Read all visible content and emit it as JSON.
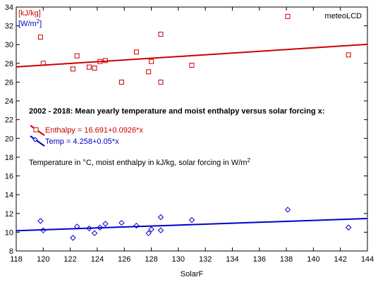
{
  "chart_data": {
    "type": "scatter",
    "title": "2002 - 2018: Mean yearly temperature and moist enthalpy versus solar forcing x:",
    "xlabel": "SolarF",
    "unit_enthalpy": "[kJ/kg]",
    "unit_solar": "[W/m",
    "unit_solar_sup": "2",
    "unit_solar_close": "]",
    "watermark": "meteoLCD",
    "note": "Temperature in °C, moist enthalpy in kJ/kg, solar forcing in W/m",
    "note_sup": "2",
    "xlim": [
      118,
      144
    ],
    "ylim": [
      8,
      34
    ],
    "xticks": [
      118,
      120,
      122,
      124,
      126,
      128,
      130,
      132,
      134,
      136,
      138,
      140,
      142,
      144
    ],
    "yticks": [
      8,
      10,
      12,
      14,
      16,
      18,
      20,
      22,
      24,
      26,
      28,
      30,
      32,
      34
    ],
    "grid": false,
    "colors": {
      "enthalpy": "#cc0000",
      "temp": "#0000cc",
      "text": "#000000"
    },
    "series": [
      {
        "name": "Enthalpy = 16.691+0.0926*x",
        "marker": "square",
        "fit": {
          "intercept": 16.691,
          "slope": 0.0926
        },
        "points": [
          [
            119.8,
            30.8
          ],
          [
            120.0,
            28.0
          ],
          [
            122.2,
            27.4
          ],
          [
            122.5,
            28.8
          ],
          [
            123.4,
            27.6
          ],
          [
            123.8,
            27.5
          ],
          [
            124.2,
            28.2
          ],
          [
            124.6,
            28.3
          ],
          [
            125.8,
            26.0
          ],
          [
            126.9,
            29.2
          ],
          [
            127.8,
            27.1
          ],
          [
            128.0,
            28.2
          ],
          [
            128.7,
            31.1
          ],
          [
            128.7,
            26.0
          ],
          [
            131.0,
            27.8
          ],
          [
            138.1,
            33.0
          ],
          [
            142.6,
            28.9
          ]
        ]
      },
      {
        "name": "Temp = 4.258+0.05*x",
        "marker": "diamond",
        "fit": {
          "intercept": 4.258,
          "slope": 0.05
        },
        "points": [
          [
            119.8,
            11.2
          ],
          [
            120.0,
            10.2
          ],
          [
            122.2,
            9.4
          ],
          [
            122.5,
            10.6
          ],
          [
            123.4,
            10.4
          ],
          [
            123.8,
            9.9
          ],
          [
            124.2,
            10.5
          ],
          [
            124.6,
            10.9
          ],
          [
            125.8,
            11.0
          ],
          [
            126.9,
            10.7
          ],
          [
            127.8,
            9.9
          ],
          [
            128.0,
            10.3
          ],
          [
            128.7,
            11.6
          ],
          [
            128.7,
            10.2
          ],
          [
            131.0,
            11.3
          ],
          [
            138.1,
            12.4
          ],
          [
            142.6,
            10.5
          ]
        ]
      }
    ]
  }
}
